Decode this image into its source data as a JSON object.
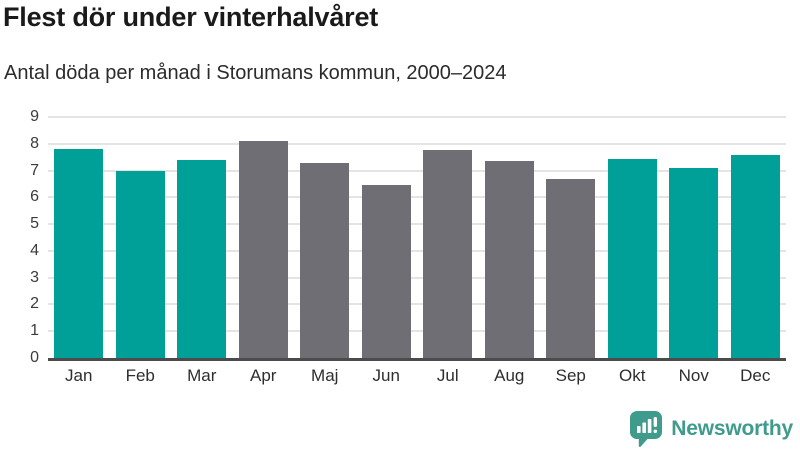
{
  "header": {
    "title": "Flest dör under vinterhalvåret",
    "subtitle": "Antal döda per månad i Storumans kommun, 2000–2024"
  },
  "chart_data": {
    "type": "bar",
    "title": "Flest dör under vinterhalvåret",
    "subtitle": "Antal döda per månad i Storumans kommun, 2000–2024",
    "categories": [
      "Jan",
      "Feb",
      "Mar",
      "Apr",
      "Maj",
      "Jun",
      "Jul",
      "Aug",
      "Sep",
      "Okt",
      "Nov",
      "Dec"
    ],
    "values": [
      7.8,
      7.0,
      7.4,
      8.1,
      7.3,
      6.45,
      7.75,
      7.35,
      6.7,
      7.45,
      7.1,
      7.6
    ],
    "bar_colors": [
      "winter",
      "winter",
      "winter",
      "summer",
      "summer",
      "summer",
      "summer",
      "summer",
      "summer",
      "winter",
      "winter",
      "winter"
    ],
    "palette": {
      "winter": "#00a099",
      "summer": "#6f6e74"
    },
    "xlabel": "",
    "ylabel": "",
    "ylim": [
      0,
      9
    ],
    "yticks": [
      0,
      1,
      2,
      3,
      4,
      5,
      6,
      7,
      8,
      9
    ],
    "grid": true,
    "legend": "none",
    "gridline_color": "#e4e4e4",
    "axis_line_color": "#4b4b4b"
  },
  "footer": {
    "logo_text": "Newsworthy",
    "logo_color": "#3f9b8c",
    "logo_icon": "bar-chart-speech-bubble-icon"
  }
}
